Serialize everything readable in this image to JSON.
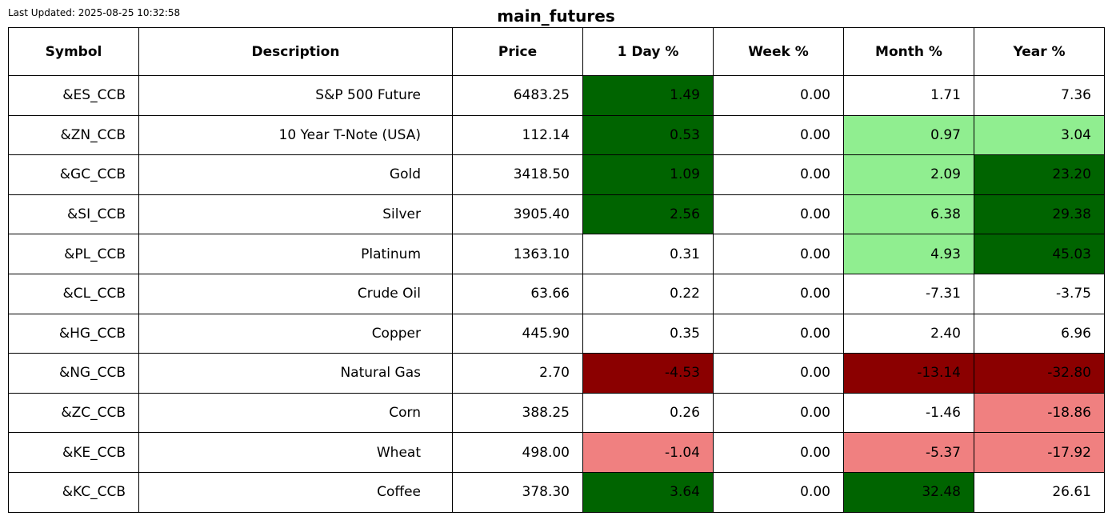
{
  "last_updated": "Last Updated: 2025-08-25 10:32:58",
  "title": "main_futures",
  "chart_data": {
    "type": "table",
    "columns": [
      "Symbol",
      "Description",
      "Price",
      "1 Day %",
      "Week %",
      "Month %",
      "Year %"
    ],
    "rows": [
      [
        "&ES_CCB",
        "S&P 500 Future",
        "6483.25",
        "1.49",
        "0.00",
        "1.71",
        "7.36"
      ],
      [
        "&ZN_CCB",
        "10 Year T-Note (USA)",
        "112.14",
        "0.53",
        "0.00",
        "0.97",
        "3.04"
      ],
      [
        "&GC_CCB",
        "Gold",
        "3418.50",
        "1.09",
        "0.00",
        "2.09",
        "23.20"
      ],
      [
        "&SI_CCB",
        "Silver",
        "3905.40",
        "2.56",
        "0.00",
        "6.38",
        "29.38"
      ],
      [
        "&PL_CCB",
        "Platinum",
        "1363.10",
        "0.31",
        "0.00",
        "4.93",
        "45.03"
      ],
      [
        "&CL_CCB",
        "Crude Oil",
        "63.66",
        "0.22",
        "0.00",
        "-7.31",
        "-3.75"
      ],
      [
        "&HG_CCB",
        "Copper",
        "445.90",
        "0.35",
        "0.00",
        "2.40",
        "6.96"
      ],
      [
        "&NG_CCB",
        "Natural Gas",
        "2.70",
        "-4.53",
        "0.00",
        "-13.14",
        "-32.80"
      ],
      [
        "&ZC_CCB",
        "Corn",
        "388.25",
        "0.26",
        "0.00",
        "-1.46",
        "-18.86"
      ],
      [
        "&KE_CCB",
        "Wheat",
        "498.00",
        "-1.04",
        "0.00",
        "-5.37",
        "-17.92"
      ],
      [
        "&KC_CCB",
        "Coffee",
        "378.30",
        "3.64",
        "0.00",
        "32.48",
        "26.61"
      ]
    ],
    "cell_colors": [
      [
        "#ffffff",
        "#ffffff",
        "#ffffff",
        "#006400",
        "#ffffff",
        "#ffffff",
        "#ffffff"
      ],
      [
        "#ffffff",
        "#ffffff",
        "#ffffff",
        "#006400",
        "#ffffff",
        "#90ee90",
        "#90ee90"
      ],
      [
        "#ffffff",
        "#ffffff",
        "#ffffff",
        "#006400",
        "#ffffff",
        "#90ee90",
        "#006400"
      ],
      [
        "#ffffff",
        "#ffffff",
        "#ffffff",
        "#006400",
        "#ffffff",
        "#90ee90",
        "#006400"
      ],
      [
        "#ffffff",
        "#ffffff",
        "#ffffff",
        "#ffffff",
        "#ffffff",
        "#90ee90",
        "#006400"
      ],
      [
        "#ffffff",
        "#ffffff",
        "#ffffff",
        "#ffffff",
        "#ffffff",
        "#ffffff",
        "#ffffff"
      ],
      [
        "#ffffff",
        "#ffffff",
        "#ffffff",
        "#ffffff",
        "#ffffff",
        "#ffffff",
        "#ffffff"
      ],
      [
        "#ffffff",
        "#ffffff",
        "#ffffff",
        "#8b0000",
        "#ffffff",
        "#8b0000",
        "#8b0000"
      ],
      [
        "#ffffff",
        "#ffffff",
        "#ffffff",
        "#ffffff",
        "#ffffff",
        "#ffffff",
        "#f08080"
      ],
      [
        "#ffffff",
        "#ffffff",
        "#ffffff",
        "#f08080",
        "#ffffff",
        "#f08080",
        "#f08080"
      ],
      [
        "#ffffff",
        "#ffffff",
        "#ffffff",
        "#006400",
        "#ffffff",
        "#006400",
        "#ffffff"
      ]
    ]
  }
}
